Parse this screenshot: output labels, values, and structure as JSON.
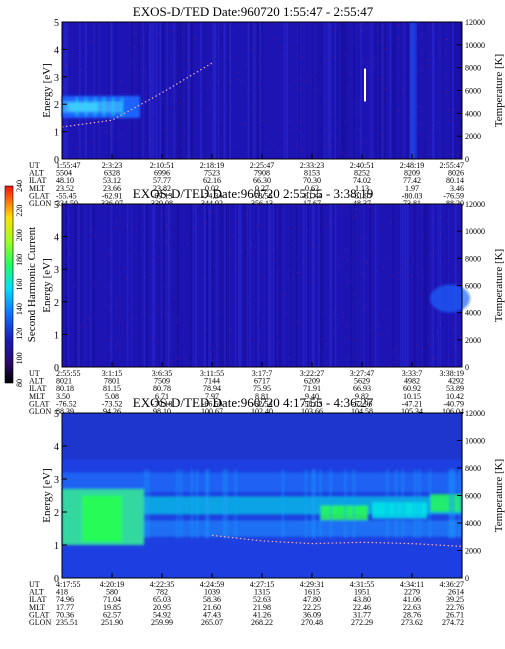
{
  "panels": [
    {
      "title": "EXOS-D/TED    Date:960720   1:55:47 - 2:55:47",
      "orbit_labels": [
        "UT",
        "ALT",
        "ILAT",
        "MLT",
        "GLAT",
        "GLON"
      ],
      "orbit_table": [
        [
          "1:55:47",
          "5504",
          "48.10",
          "23.52",
          "-55.45",
          "334.59"
        ],
        [
          "2:3:23",
          "6328",
          "53.12",
          "23.66",
          "-62.91",
          "336.07"
        ],
        [
          "2:10:51",
          "6996",
          "57.77",
          "23.82",
          "-69.13",
          "339.08"
        ],
        [
          "2:18:19",
          "7523",
          "62.16",
          "0.02",
          "-74.34",
          "344.92"
        ],
        [
          "2:25:47",
          "7908",
          "66.30",
          "0.27",
          "-78.56",
          "356.13"
        ],
        [
          "2:33:23",
          "8153",
          "70.30",
          "0.62",
          "-81.44",
          "17.67"
        ],
        [
          "2:40:51",
          "8252",
          "74.02",
          "1.13",
          "-81.97",
          "48.37"
        ],
        [
          "2:48:19",
          "8209",
          "77.42",
          "1.97",
          "-80.03",
          "73.81"
        ],
        [
          "2:55:47",
          "8026",
          "80.14",
          "3.46",
          "-76.59",
          "88.20"
        ]
      ]
    },
    {
      "title": "EXOS-D/TED    Date:960720   2:55:55 - 3:38:19",
      "orbit_labels": [
        "UT",
        "ALT",
        "ILAT",
        "MLT",
        "GLAT",
        "GLON"
      ],
      "orbit_table": [
        [
          "2:55:55",
          "8021",
          "80.18",
          "3.50",
          "-76.52",
          "88.39"
        ],
        [
          "3:1:15",
          "7801",
          "81.15",
          "5.08",
          "-73.52",
          "94.26"
        ],
        [
          "3:6:35",
          "7509",
          "80.78",
          "6.71",
          "-70.18",
          "98.10"
        ],
        [
          "3:11:55",
          "7144",
          "78.94",
          "7.97",
          "-66.50",
          "100.67"
        ],
        [
          "3:17:7",
          "6717",
          "75.95",
          "8.81",
          "-62.54",
          "102.40"
        ],
        [
          "3:22:27",
          "6209",
          "71.91",
          "9.40",
          "-58.03",
          "103.66"
        ],
        [
          "3:27:47",
          "5629",
          "66.93",
          "9.82",
          "-52.96",
          "104.58"
        ],
        [
          "3:33:7",
          "4982",
          "60.92",
          "10.15",
          "-47.21",
          "105.34"
        ],
        [
          "3:38:19",
          "4292",
          "53.89",
          "10.42",
          "-40.79",
          "106.04"
        ]
      ]
    },
    {
      "title": "EXOS-D/TED    Date:960720   4:17:55 - 4:36:27",
      "orbit_labels": [
        "UT",
        "ALT",
        "ILAT",
        "MLT",
        "GLAT",
        "GLON"
      ],
      "orbit_table": [
        [
          "4:17:55",
          "418",
          "74.96",
          "17.77",
          "70.36",
          "235.51"
        ],
        [
          "4:20:19",
          "580",
          "71.04",
          "19.85",
          "62.57",
          "251.90"
        ],
        [
          "4:22:35",
          "782",
          "65.03",
          "20.95",
          "54.92",
          "259.99"
        ],
        [
          "4:24:59",
          "1039",
          "58.36",
          "21.60",
          "47.43",
          "265.07"
        ],
        [
          "4:27:15",
          "1315",
          "52.63",
          "21.98",
          "41.26",
          "268.22"
        ],
        [
          "4:29:31",
          "1615",
          "47.80",
          "22.25",
          "36.09",
          "270.48"
        ],
        [
          "4:31:55",
          "1951",
          "43.80",
          "22.46",
          "31.77",
          "272.29"
        ],
        [
          "4:34:11",
          "2279",
          "41.06",
          "22.63",
          "28.76",
          "273.62"
        ],
        [
          "4:36:27",
          "2614",
          "39.25",
          "22.76",
          "26.71",
          "274.72"
        ]
      ]
    }
  ],
  "axis": {
    "ylabel_left": "Energy [eV]",
    "ylabel_right": "Temperature [K]",
    "yticks_left": [
      "0",
      "1",
      "2",
      "3",
      "4",
      "5"
    ],
    "yticks_right": [
      "0",
      "2000",
      "4000",
      "6000",
      "8000",
      "10000",
      "12000"
    ]
  },
  "colorbar": {
    "label": "Second Harmonic Current",
    "ticks": [
      "80",
      "100",
      "120",
      "140",
      "160",
      "180",
      "200",
      "220",
      "240"
    ]
  },
  "colors": {
    "background": "#ffffff",
    "plasma_low": "#1e14b4",
    "plasma_mid": "#1a64ff",
    "plasma_high": "#00e6e6",
    "plasma_peak": "#28ff50",
    "temperature_trace": "#e8b0c8"
  },
  "chart_data": [
    {
      "type": "heatmap",
      "title": "EXOS-D/TED    Date:960720   1:55:47 - 2:55:47",
      "xlabel": "UT",
      "ylabel": "Energy [eV]",
      "y2label": "Temperature [K]",
      "ylim": [
        0,
        5
      ],
      "y2lim": [
        0,
        12000
      ],
      "x": [
        "1:55:47",
        "2:3:23",
        "2:10:51",
        "2:18:19",
        "2:25:47",
        "2:33:23",
        "2:40:51",
        "2:48:19",
        "2:55:47"
      ],
      "series": [
        {
          "name": "Temperature [K]",
          "x": [
            "1:55:47",
            "2:3:23",
            "2:10:51",
            "2:18:19"
          ],
          "values": [
            2800,
            3400,
            5800,
            8400
          ]
        }
      ]
    },
    {
      "type": "heatmap",
      "title": "EXOS-D/TED    Date:960720   2:55:55 - 3:38:19",
      "xlabel": "UT",
      "ylabel": "Energy [eV]",
      "y2label": "Temperature [K]",
      "ylim": [
        0,
        5
      ],
      "y2lim": [
        0,
        12000
      ],
      "x": [
        "2:55:55",
        "3:1:15",
        "3:6:35",
        "3:11:55",
        "3:17:7",
        "3:22:27",
        "3:27:47",
        "3:33:7",
        "3:38:19"
      ],
      "series": []
    },
    {
      "type": "heatmap",
      "title": "EXOS-D/TED    Date:960720   4:17:55 - 4:36:27",
      "xlabel": "UT",
      "ylabel": "Energy [eV]",
      "y2label": "Temperature [K]",
      "ylim": [
        0,
        5
      ],
      "y2lim": [
        0,
        12000
      ],
      "x": [
        "4:17:55",
        "4:20:19",
        "4:22:35",
        "4:24:59",
        "4:27:15",
        "4:29:31",
        "4:31:55",
        "4:34:11",
        "4:36:27"
      ],
      "series": [
        {
          "name": "Temperature [K]",
          "x": [
            "4:24:59",
            "4:27:15",
            "4:29:31",
            "4:31:55",
            "4:34:11",
            "4:36:27"
          ],
          "values": [
            3100,
            2700,
            2500,
            2600,
            2500,
            2300
          ]
        }
      ]
    }
  ]
}
